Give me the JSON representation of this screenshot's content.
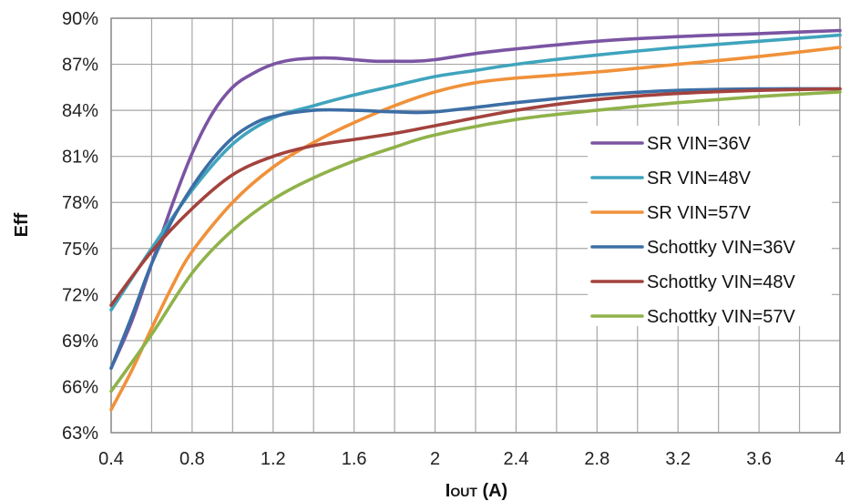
{
  "chart_data": {
    "type": "line",
    "title": "",
    "xlabel": "IOUT (A)",
    "xlabel_main": "I",
    "xlabel_sub": "OUT",
    "xlabel_suffix": " (A)",
    "ylabel": "Eff",
    "xlim": [
      0.4,
      4
    ],
    "ylim": [
      63,
      90
    ],
    "x_ticks": [
      "0.4",
      "0.8",
      "1.2",
      "1.6",
      "2",
      "2.4",
      "2.8",
      "3.2",
      "3.6",
      "4"
    ],
    "y_ticks": [
      "63%",
      "66%",
      "69%",
      "72%",
      "75%",
      "78%",
      "81%",
      "84%",
      "87%",
      "90%"
    ],
    "grid": true,
    "legend_position": "right",
    "series": [
      {
        "name": "SR VIN=36V",
        "color": "#7b54a3",
        "x": [
          0.4,
          0.5,
          0.6,
          0.7,
          0.8,
          0.9,
          1.0,
          1.1,
          1.2,
          1.3,
          1.4,
          1.5,
          1.6,
          1.7,
          1.8,
          1.9,
          2.0,
          2.2,
          2.4,
          2.8,
          3.2,
          3.6,
          4.0
        ],
        "y": [
          67.2,
          70.2,
          74.0,
          77.8,
          81.2,
          83.8,
          85.5,
          86.4,
          87.0,
          87.3,
          87.4,
          87.4,
          87.3,
          87.2,
          87.2,
          87.2,
          87.3,
          87.7,
          88.0,
          88.5,
          88.8,
          89.0,
          89.2
        ]
      },
      {
        "name": "SR VIN=48V",
        "color": "#3fa4bd",
        "x": [
          0.4,
          0.6,
          0.8,
          1.0,
          1.2,
          1.4,
          1.6,
          1.8,
          2.0,
          2.2,
          2.4,
          2.8,
          3.2,
          3.6,
          4.0
        ],
        "y": [
          71.0,
          75.0,
          78.8,
          81.8,
          83.5,
          84.3,
          85.0,
          85.6,
          86.2,
          86.6,
          87.0,
          87.6,
          88.1,
          88.5,
          88.9
        ]
      },
      {
        "name": "SR VIN=57V",
        "color": "#f0913a",
        "x": [
          0.4,
          0.5,
          0.6,
          0.7,
          0.8,
          1.0,
          1.2,
          1.4,
          1.6,
          1.8,
          2.0,
          2.2,
          2.4,
          2.8,
          3.2,
          3.6,
          4.0
        ],
        "y": [
          64.5,
          67.0,
          69.8,
          72.5,
          74.8,
          78.0,
          80.3,
          81.9,
          83.2,
          84.3,
          85.2,
          85.8,
          86.1,
          86.5,
          87.0,
          87.5,
          88.1
        ]
      },
      {
        "name": "Schottky VIN=36V",
        "color": "#3c6ea5",
        "x": [
          0.4,
          0.5,
          0.6,
          0.7,
          0.8,
          0.9,
          1.0,
          1.1,
          1.2,
          1.4,
          1.6,
          1.8,
          2.0,
          2.4,
          2.8,
          3.2,
          3.6,
          4.0
        ],
        "y": [
          67.2,
          70.5,
          74.0,
          76.8,
          79.0,
          80.8,
          82.2,
          83.1,
          83.6,
          84.0,
          84.0,
          83.9,
          83.9,
          84.5,
          85.0,
          85.3,
          85.4,
          85.4
        ]
      },
      {
        "name": "Schottky VIN=48V",
        "color": "#a3423d",
        "x": [
          0.4,
          0.6,
          0.8,
          1.0,
          1.2,
          1.4,
          1.6,
          1.8,
          2.0,
          2.4,
          2.8,
          3.2,
          3.6,
          4.0
        ],
        "y": [
          71.3,
          74.8,
          77.6,
          79.8,
          81.0,
          81.7,
          82.1,
          82.5,
          83.0,
          84.0,
          84.7,
          85.1,
          85.3,
          85.4
        ]
      },
      {
        "name": "Schottky VIN=57V",
        "color": "#8fb24a",
        "x": [
          0.4,
          0.6,
          0.8,
          1.0,
          1.2,
          1.4,
          1.6,
          1.8,
          2.0,
          2.4,
          2.8,
          3.2,
          3.6,
          4.0
        ],
        "y": [
          65.7,
          69.4,
          73.4,
          76.2,
          78.2,
          79.6,
          80.7,
          81.6,
          82.4,
          83.4,
          84.0,
          84.5,
          84.9,
          85.2
        ]
      }
    ]
  }
}
